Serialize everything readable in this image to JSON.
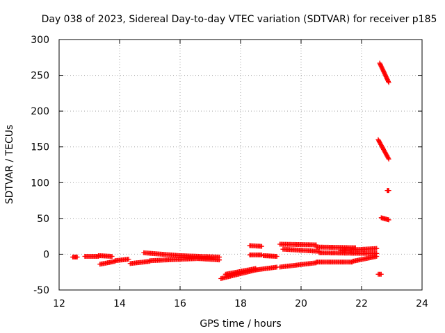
{
  "chart_data": {
    "type": "scatter",
    "title": "Day 038 of 2023, Sidereal Day-to-day VTEC variation (SDTVAR) for receiver p185",
    "xlabel": "GPS time / hours",
    "ylabel": "SDTVAR / TECUs",
    "xlim": [
      12,
      24
    ],
    "ylim": [
      -50,
      300
    ],
    "xticks": [
      12,
      14,
      16,
      18,
      20,
      22,
      24
    ],
    "yticks": [
      -50,
      0,
      50,
      100,
      150,
      200,
      250,
      300
    ],
    "grid": true,
    "marker": "plus",
    "color": "#ff0000",
    "segments": [
      {
        "x": [
          12.45,
          12.6
        ],
        "y": [
          -4,
          -4
        ]
      },
      {
        "x": [
          12.85,
          13.3
        ],
        "y": [
          -3,
          -3
        ]
      },
      {
        "x": [
          13.3,
          13.75
        ],
        "y": [
          -2,
          -3
        ]
      },
      {
        "x": [
          13.35,
          13.85
        ],
        "y": [
          -14,
          -10
        ]
      },
      {
        "x": [
          13.85,
          14.3
        ],
        "y": [
          -9,
          -7
        ]
      },
      {
        "x": [
          14.35,
          15.0
        ],
        "y": [
          -13,
          -10
        ]
      },
      {
        "x": [
          14.8,
          16.0
        ],
        "y": [
          2,
          -2
        ]
      },
      {
        "x": [
          15.0,
          16.6
        ],
        "y": [
          -9,
          -6
        ]
      },
      {
        "x": [
          16.0,
          17.3
        ],
        "y": [
          -2,
          -4
        ]
      },
      {
        "x": [
          16.6,
          17.3
        ],
        "y": [
          -6,
          -8
        ]
      },
      {
        "x": [
          17.35,
          18.5
        ],
        "y": [
          -34,
          -22
        ]
      },
      {
        "x": [
          17.5,
          18.5
        ],
        "y": [
          -28,
          -20
        ]
      },
      {
        "x": [
          18.5,
          19.2
        ],
        "y": [
          -22,
          -18
        ]
      },
      {
        "x": [
          18.3,
          18.7
        ],
        "y": [
          12,
          11
        ]
      },
      {
        "x": [
          18.3,
          18.7
        ],
        "y": [
          -1,
          -1
        ]
      },
      {
        "x": [
          18.75,
          19.2
        ],
        "y": [
          -2,
          -3
        ]
      },
      {
        "x": [
          19.3,
          20.5
        ],
        "y": [
          -18,
          -12
        ]
      },
      {
        "x": [
          20.5,
          21.7
        ],
        "y": [
          -11,
          -11
        ]
      },
      {
        "x": [
          21.7,
          22.5
        ],
        "y": [
          -10,
          -3
        ]
      },
      {
        "x": [
          19.3,
          20.5
        ],
        "y": [
          14,
          13
        ]
      },
      {
        "x": [
          20.5,
          21.8
        ],
        "y": [
          10,
          9
        ]
      },
      {
        "x": [
          21.3,
          22.5
        ],
        "y": [
          5,
          8
        ]
      },
      {
        "x": [
          19.4,
          20.6
        ],
        "y": [
          7,
          4
        ]
      },
      {
        "x": [
          20.6,
          22.5
        ],
        "y": [
          2,
          1
        ]
      },
      {
        "x": [
          22.6,
          22.9
        ],
        "y": [
          267,
          240
        ]
      },
      {
        "x": [
          22.55,
          22.9
        ],
        "y": [
          160,
          133
        ]
      },
      {
        "x": [
          22.65,
          22.9
        ],
        "y": [
          51,
          48
        ]
      },
      {
        "x": [
          22.85,
          22.9
        ],
        "y": [
          89,
          89
        ]
      },
      {
        "x": [
          22.55,
          22.65
        ],
        "y": [
          -28,
          -28
        ]
      }
    ]
  }
}
